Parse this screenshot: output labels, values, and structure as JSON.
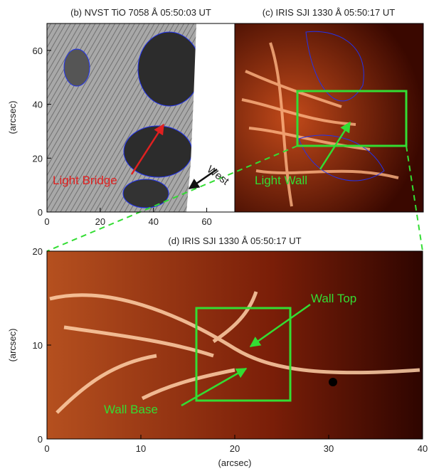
{
  "panels": [
    {
      "title": "(b) NVST TiO 7058 Å 05:50:03 UT",
      "ylabel": "(arcsec)",
      "xlim": [
        0,
        70
      ],
      "ylim": [
        0,
        70
      ],
      "xticks": [
        0,
        20,
        40,
        60
      ],
      "yticks": [
        0,
        20,
        40,
        60
      ],
      "annotations": [
        "Light Bridge",
        "West"
      ]
    },
    {
      "title": "(c) IRIS SJI 1330 Å 05:50:17 UT",
      "annotations": [
        "Light Wall"
      ]
    },
    {
      "title": "(d) IRIS SJI 1330 Å 05:50:17 UT",
      "ylabel": "(arcsec)",
      "xlabel": "(arcsec)",
      "xlim": [
        0,
        40
      ],
      "ylim": [
        0,
        20
      ],
      "xticks": [
        0,
        10,
        20,
        30,
        40
      ],
      "yticks": [
        0,
        10,
        20
      ],
      "annotations": [
        "Wall Top",
        "Wall Base"
      ]
    }
  ]
}
